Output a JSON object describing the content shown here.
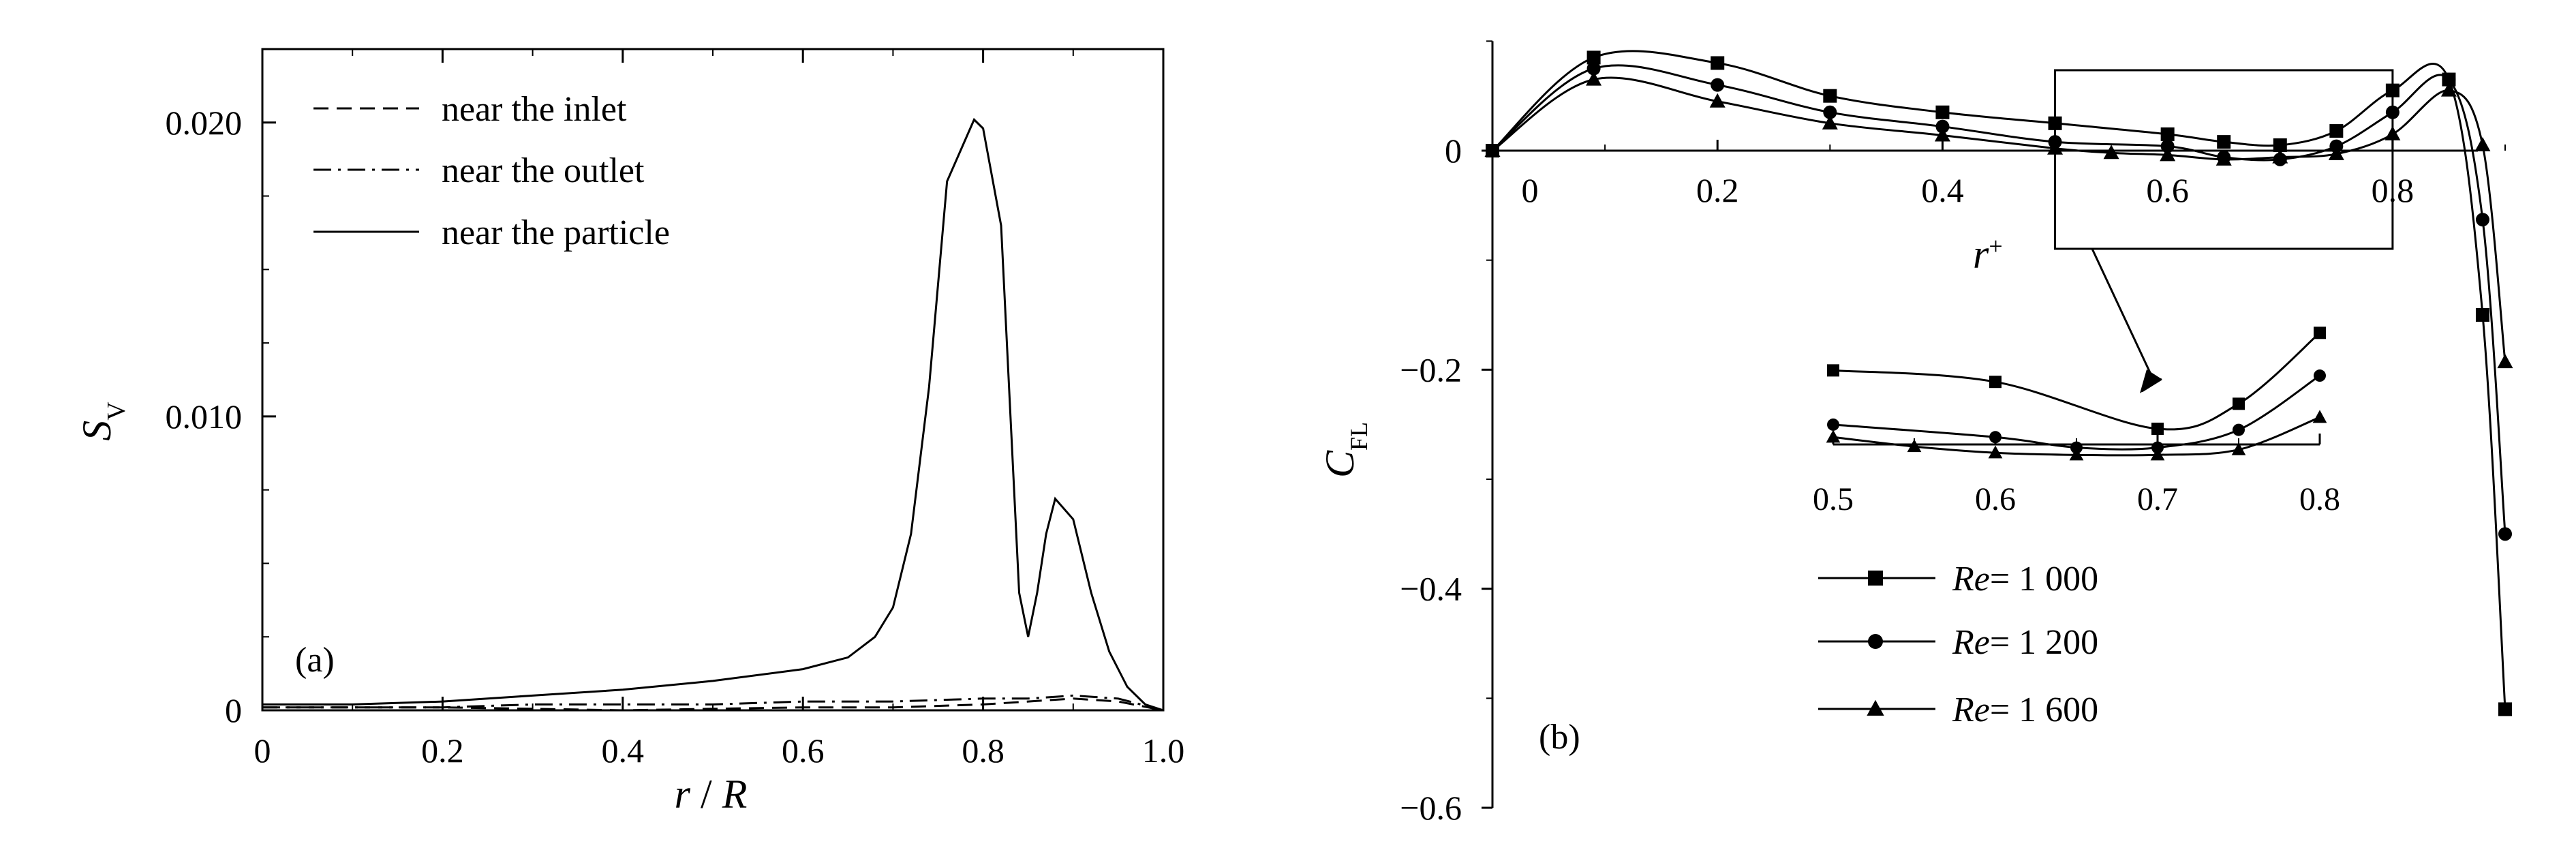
{
  "chart_data": [
    {
      "type": "line",
      "panel_label": "(a)",
      "xlabel_var": "r",
      "xlabel_sep": " / ",
      "xlabel_var2": "R",
      "ylabel_main": "S",
      "ylabel_sub": "V",
      "xlim": [
        0,
        1.0
      ],
      "ylim": [
        0,
        0.0225
      ],
      "x_ticks": [
        0,
        0.2,
        0.4,
        0.6,
        0.8,
        1.0
      ],
      "x_tick_labels": [
        "0",
        "0.2",
        "0.4",
        "0.6",
        "0.8",
        "1.0"
      ],
      "y_ticks": [
        0,
        0.01,
        0.02
      ],
      "y_tick_labels": [
        "0",
        "0.010",
        "0.020"
      ],
      "legend_position": "top-left",
      "grid": false,
      "series": [
        {
          "name": "near the inlet",
          "line_style": "dashed",
          "points": [
            [
              0,
              0.0001
            ],
            [
              0.1,
              0.0001
            ],
            [
              0.2,
              0.0001
            ],
            [
              0.3,
              5e-05
            ],
            [
              0.4,
              0.0
            ],
            [
              0.5,
              5e-05
            ],
            [
              0.6,
              0.0001
            ],
            [
              0.7,
              0.0001
            ],
            [
              0.8,
              0.0002
            ],
            [
              0.85,
              0.0003
            ],
            [
              0.9,
              0.0004
            ],
            [
              0.95,
              0.0003
            ],
            [
              1.0,
              0.0
            ]
          ]
        },
        {
          "name": "near the outlet",
          "line_style": "dashdot",
          "points": [
            [
              0,
              0.0001
            ],
            [
              0.1,
              0.0001
            ],
            [
              0.2,
              0.0001
            ],
            [
              0.3,
              0.0002
            ],
            [
              0.4,
              0.0002
            ],
            [
              0.5,
              0.0002
            ],
            [
              0.6,
              0.0003
            ],
            [
              0.7,
              0.0003
            ],
            [
              0.8,
              0.0004
            ],
            [
              0.85,
              0.0004
            ],
            [
              0.9,
              0.0005
            ],
            [
              0.95,
              0.0004
            ],
            [
              1.0,
              0.0
            ]
          ]
        },
        {
          "name": "near the particle",
          "line_style": "solid",
          "points": [
            [
              0,
              0.0002
            ],
            [
              0.1,
              0.0002
            ],
            [
              0.2,
              0.0003
            ],
            [
              0.3,
              0.0005
            ],
            [
              0.4,
              0.0007
            ],
            [
              0.5,
              0.001
            ],
            [
              0.6,
              0.0014
            ],
            [
              0.65,
              0.0018
            ],
            [
              0.68,
              0.0025
            ],
            [
              0.7,
              0.0035
            ],
            [
              0.72,
              0.006
            ],
            [
              0.74,
              0.011
            ],
            [
              0.76,
              0.018
            ],
            [
              0.79,
              0.0201
            ],
            [
              0.8,
              0.0198
            ],
            [
              0.82,
              0.0165
            ],
            [
              0.84,
              0.004
            ],
            [
              0.85,
              0.0025
            ],
            [
              0.86,
              0.004
            ],
            [
              0.87,
              0.006
            ],
            [
              0.88,
              0.0072
            ],
            [
              0.9,
              0.0065
            ],
            [
              0.92,
              0.004
            ],
            [
              0.94,
              0.002
            ],
            [
              0.96,
              0.0008
            ],
            [
              0.98,
              0.0002
            ],
            [
              1.0,
              0.0
            ]
          ]
        }
      ]
    },
    {
      "type": "line",
      "panel_label": "(b)",
      "xlabel_var": "r",
      "xlabel_sup": "+",
      "ylabel_main": "C",
      "ylabel_sub": "FL",
      "xlim": [
        0,
        0.9
      ],
      "ylim": [
        -0.6,
        0.1
      ],
      "x_ticks": [
        0,
        0.2,
        0.4,
        0.6,
        0.8
      ],
      "x_tick_labels": [
        "0",
        "0.2",
        "0.4",
        "0.6",
        "0.8"
      ],
      "y_ticks": [
        0,
        -0.2,
        -0.4,
        -0.6
      ],
      "y_tick_labels": [
        "0",
        "-0.2",
        "-0.4",
        "-0.6"
      ],
      "legend_position": "bottom-center",
      "grid": false,
      "inset": {
        "xlim": [
          0.5,
          0.8
        ],
        "x_ticks": [
          0.5,
          0.6,
          0.7,
          0.8
        ],
        "x_tick_labels": [
          "0.5",
          "0.6",
          "0.7",
          "0.8"
        ],
        "ylim": [
          -0.02,
          0.08
        ]
      },
      "series": [
        {
          "name_prefix": "Re",
          "name_value": "= 1 000",
          "marker": "square",
          "points": [
            [
              0,
              0
            ],
            [
              0.09,
              0.085
            ],
            [
              0.2,
              0.08
            ],
            [
              0.3,
              0.05
            ],
            [
              0.4,
              0.035
            ],
            [
              0.5,
              0.025
            ],
            [
              0.6,
              0.015
            ],
            [
              0.65,
              0.008
            ],
            [
              0.7,
              0.005
            ],
            [
              0.75,
              0.018
            ],
            [
              0.8,
              0.055
            ],
            [
              0.85,
              0.065
            ],
            [
              0.88,
              -0.15
            ],
            [
              0.9,
              -0.51
            ]
          ]
        },
        {
          "name_prefix": "Re",
          "name_value": "= 1 200",
          "marker": "circle",
          "points": [
            [
              0,
              0
            ],
            [
              0.09,
              0.075
            ],
            [
              0.2,
              0.06
            ],
            [
              0.3,
              0.035
            ],
            [
              0.4,
              0.022
            ],
            [
              0.5,
              0.008
            ],
            [
              0.6,
              0.004
            ],
            [
              0.65,
              -0.006
            ],
            [
              0.7,
              -0.008
            ],
            [
              0.75,
              0.004
            ],
            [
              0.8,
              0.035
            ],
            [
              0.85,
              0.065
            ],
            [
              0.88,
              -0.063
            ],
            [
              0.9,
              -0.35
            ]
          ]
        },
        {
          "name_prefix": "Re",
          "name_value": "= 1 600",
          "marker": "triangle",
          "points": [
            [
              0,
              0
            ],
            [
              0.09,
              0.065
            ],
            [
              0.2,
              0.045
            ],
            [
              0.3,
              0.025
            ],
            [
              0.4,
              0.014
            ],
            [
              0.5,
              0.002
            ],
            [
              0.55,
              -0.002
            ],
            [
              0.6,
              -0.004
            ],
            [
              0.65,
              -0.008
            ],
            [
              0.7,
              -0.006
            ],
            [
              0.75,
              -0.003
            ],
            [
              0.8,
              0.015
            ],
            [
              0.85,
              0.055
            ],
            [
              0.88,
              0.005
            ],
            [
              0.9,
              -0.193
            ]
          ]
        }
      ]
    }
  ]
}
